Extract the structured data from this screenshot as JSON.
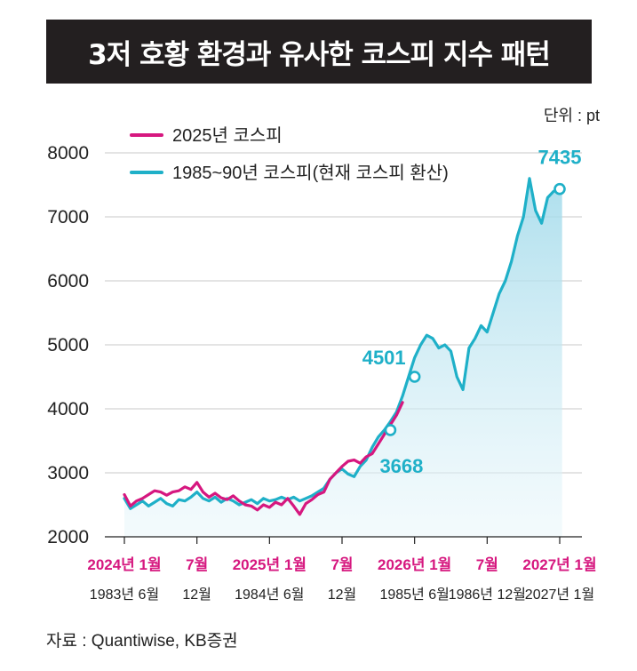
{
  "title": "3저 호황 환경과 유사한 코스피 지수 패턴",
  "unit": "단위 : pt",
  "source": "자료 : Quantiwise, KB증권",
  "colors": {
    "pink": "#d6177f",
    "cyan": "#1fb0c8",
    "fill": "#bfe6f0",
    "title_bg": "#231f20"
  },
  "chart_data": {
    "type": "line",
    "title": "3저 호황 환경과 유사한 코스피 지수 패턴",
    "ylabel": "pt",
    "ylim": [
      2000,
      8000
    ],
    "yticks": [
      2000,
      3000,
      4000,
      5000,
      6000,
      7000,
      8000
    ],
    "xlim": [
      0,
      37
    ],
    "x_ticks": [
      {
        "x": 0,
        "top": "2024년 1월",
        "bottom": "1983년 6월"
      },
      {
        "x": 6,
        "top": "7월",
        "bottom": "12월"
      },
      {
        "x": 12,
        "top": "2025년 1월",
        "bottom": "1984년 6월"
      },
      {
        "x": 18,
        "top": "7월",
        "bottom": "12월"
      },
      {
        "x": 24,
        "top": "2026년 1월",
        "bottom": "1985년 6월"
      },
      {
        "x": 30,
        "top": "7월",
        "bottom": "1986년 12월"
      },
      {
        "x": 36,
        "top": "2027년 1월",
        "bottom": "2027년 1월"
      }
    ],
    "legend": [
      "2025년 코스피",
      "1985~90년 코스피(현재 코스피 환산)"
    ],
    "series": [
      {
        "name": "2025년 코스피",
        "color": "#d6177f",
        "x": [
          0,
          0.5,
          1,
          1.5,
          2,
          2.5,
          3,
          3.5,
          4,
          4.5,
          5,
          5.5,
          6,
          6.5,
          7,
          7.5,
          8,
          8.5,
          9,
          9.5,
          10,
          10.5,
          11,
          11.5,
          12,
          12.5,
          13,
          13.5,
          14,
          14.5,
          15,
          15.5,
          16,
          16.5,
          17,
          17.5,
          18,
          18.5,
          19,
          19.5,
          20,
          20.5,
          21,
          21.5,
          22,
          22.5,
          23
        ],
        "y": [
          2660,
          2480,
          2560,
          2600,
          2660,
          2720,
          2700,
          2650,
          2700,
          2720,
          2780,
          2740,
          2850,
          2700,
          2620,
          2680,
          2610,
          2580,
          2640,
          2560,
          2500,
          2480,
          2420,
          2500,
          2460,
          2540,
          2500,
          2600,
          2480,
          2350,
          2520,
          2580,
          2660,
          2700,
          2900,
          3000,
          3100,
          3180,
          3200,
          3150,
          3250,
          3300,
          3450,
          3600,
          3750,
          3900,
          4100
        ]
      },
      {
        "name": "1985~90년 코스피(현재 코스피 환산)",
        "color": "#1fb0c8",
        "x": [
          0,
          0.5,
          1,
          1.5,
          2,
          2.5,
          3,
          3.5,
          4,
          4.5,
          5,
          5.5,
          6,
          6.5,
          7,
          7.5,
          8,
          8.5,
          9,
          9.5,
          10,
          10.5,
          11,
          11.5,
          12,
          12.5,
          13,
          13.5,
          14,
          14.5,
          15,
          15.5,
          16,
          16.5,
          17,
          17.5,
          18,
          18.5,
          19,
          19.5,
          20,
          20.5,
          21,
          21.5,
          22,
          22.5,
          23,
          23.5,
          24,
          24.5,
          25,
          25.5,
          26,
          26.5,
          27,
          27.5,
          28,
          28.5,
          29,
          29.5,
          30,
          30.5,
          31,
          31.5,
          32,
          32.5,
          33,
          33.5,
          34,
          34.5,
          35,
          35.5,
          36,
          36.2
        ],
        "y": [
          2600,
          2440,
          2500,
          2560,
          2480,
          2540,
          2600,
          2520,
          2480,
          2580,
          2560,
          2620,
          2700,
          2600,
          2560,
          2620,
          2540,
          2600,
          2560,
          2500,
          2540,
          2580,
          2520,
          2600,
          2560,
          2580,
          2620,
          2580,
          2620,
          2560,
          2600,
          2640,
          2700,
          2760,
          2900,
          3000,
          3060,
          2980,
          2940,
          3100,
          3200,
          3400,
          3560,
          3668,
          3800,
          3950,
          4200,
          4501,
          4800,
          5000,
          5150,
          5100,
          4950,
          5000,
          4900,
          4500,
          4300,
          4950,
          5100,
          5300,
          5200,
          5500,
          5800,
          6000,
          6300,
          6700,
          7000,
          7600,
          7100,
          6900,
          7300,
          7400,
          7435,
          7500
        ]
      }
    ],
    "annotations": [
      {
        "label": "7435",
        "x": 36,
        "y": 7435
      },
      {
        "label": "4501",
        "x": 24,
        "y": 4501
      },
      {
        "label": "3668",
        "x": 22,
        "y": 3668
      }
    ]
  }
}
